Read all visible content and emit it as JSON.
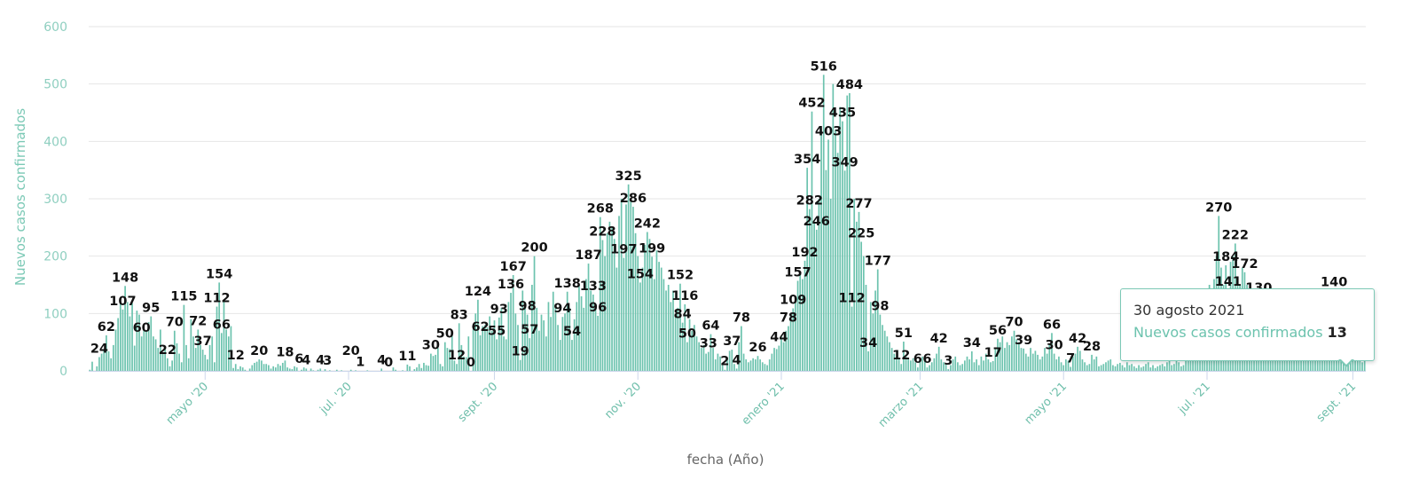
{
  "chart_data": {
    "type": "bar",
    "title": "",
    "xlabel": "fecha (Año)",
    "ylabel": "Nuevos casos confirmados",
    "ylim": [
      0,
      600
    ],
    "yticks": [
      "0",
      "100",
      "200",
      "300",
      "400",
      "500",
      "600"
    ],
    "xlim": [
      "2020-03-13",
      "2021-09-06"
    ],
    "xticks": [
      {
        "date": "2020-05-01",
        "label": "mayo '20"
      },
      {
        "date": "2020-07-01",
        "label": "jul. '20"
      },
      {
        "date": "2020-09-01",
        "label": "sept. '20"
      },
      {
        "date": "2020-11-01",
        "label": "nov. '20"
      },
      {
        "date": "2021-01-01",
        "label": "enero '21"
      },
      {
        "date": "2021-03-01",
        "label": "marzo '21"
      },
      {
        "date": "2021-05-01",
        "label": "mayo '21"
      },
      {
        "date": "2021-07-01",
        "label": "jul. '21"
      },
      {
        "date": "2021-09-01",
        "label": "sept. '21"
      }
    ],
    "grid": true,
    "bar_color": "#6cc3ae",
    "daily_values": [
      2,
      16,
      0,
      8,
      24,
      30,
      38,
      62,
      34,
      22,
      45,
      72,
      92,
      118,
      107,
      148,
      120,
      95,
      118,
      44,
      105,
      98,
      60,
      72,
      70,
      85,
      95,
      60,
      55,
      40,
      72,
      30,
      38,
      22,
      8,
      18,
      70,
      48,
      30,
      15,
      115,
      45,
      22,
      90,
      60,
      40,
      72,
      45,
      37,
      28,
      20,
      45,
      60,
      15,
      112,
      154,
      66,
      120,
      72,
      60,
      78,
      5,
      12,
      3,
      8,
      6,
      2,
      0,
      4,
      10,
      14,
      16,
      20,
      18,
      12,
      12,
      10,
      4,
      8,
      6,
      12,
      9,
      14,
      18,
      6,
      4,
      3,
      8,
      6,
      0,
      2,
      6,
      4,
      0,
      4,
      1,
      0,
      2,
      4,
      0,
      3,
      0,
      1,
      0,
      0,
      2,
      0,
      1,
      0,
      0,
      0,
      2,
      0,
      1,
      0,
      0,
      0,
      0,
      1,
      0,
      0,
      0,
      0,
      0,
      4,
      0,
      0,
      0,
      0,
      6,
      2,
      0,
      0,
      1,
      0,
      11,
      8,
      0,
      3,
      6,
      12,
      5,
      14,
      10,
      9,
      30,
      26,
      28,
      40,
      12,
      8,
      50,
      40,
      38,
      62,
      18,
      12,
      83,
      45,
      25,
      24,
      60,
      0,
      72,
      100,
      124,
      62,
      78,
      80,
      76,
      95,
      70,
      88,
      55,
      93,
      110,
      60,
      55,
      120,
      136,
      167,
      100,
      80,
      19,
      140,
      118,
      98,
      57,
      150,
      200,
      110,
      70,
      98,
      88,
      60,
      120,
      94,
      138,
      110,
      80,
      54,
      94,
      100,
      138,
      110,
      54,
      90,
      120,
      150,
      130,
      110,
      160,
      187,
      140,
      133,
      110,
      96,
      268,
      228,
      200,
      240,
      260,
      250,
      230,
      180,
      270,
      300,
      197,
      290,
      325,
      300,
      286,
      240,
      200,
      154,
      180,
      220,
      242,
      230,
      199,
      160,
      210,
      190,
      180,
      160,
      140,
      150,
      120,
      140,
      100,
      110,
      152,
      84,
      116,
      50,
      90,
      70,
      80,
      60,
      50,
      40,
      45,
      30,
      33,
      64,
      40,
      20,
      30,
      25,
      10,
      2,
      20,
      35,
      37,
      12,
      4,
      50,
      78,
      30,
      20,
      15,
      18,
      22,
      20,
      26,
      20,
      15,
      12,
      10,
      20,
      30,
      40,
      38,
      44,
      60,
      50,
      70,
      78,
      100,
      109,
      120,
      157,
      170,
      160,
      192,
      354,
      282,
      452,
      260,
      246,
      300,
      420,
      516,
      350,
      403,
      300,
      500,
      420,
      380,
      460,
      435,
      349,
      480,
      484,
      112,
      300,
      260,
      277,
      225,
      200,
      150,
      34,
      120,
      100,
      140,
      177,
      98,
      80,
      70,
      60,
      50,
      40,
      30,
      25,
      20,
      12,
      51,
      25,
      20,
      18,
      22,
      15,
      6,
      20,
      25,
      18,
      6,
      10,
      15,
      22,
      30,
      42,
      20,
      15,
      12,
      3,
      10,
      20,
      25,
      15,
      10,
      12,
      18,
      25,
      20,
      34,
      15,
      20,
      10,
      25,
      18,
      30,
      20,
      15,
      17,
      40,
      56,
      50,
      60,
      40,
      50,
      45,
      60,
      70,
      55,
      50,
      40,
      39,
      30,
      25,
      40,
      30,
      35,
      28,
      20,
      25,
      40,
      30,
      45,
      66,
      30,
      20,
      25,
      15,
      10,
      20,
      18,
      7,
      25,
      30,
      42,
      35,
      20,
      15,
      10,
      12,
      28,
      20,
      25,
      8,
      10,
      12,
      15,
      18,
      20,
      10,
      8,
      12,
      14,
      10,
      6,
      15,
      10,
      12,
      8,
      5,
      10,
      6,
      8,
      12,
      15,
      6,
      10,
      5,
      8,
      10,
      12,
      8,
      15,
      18,
      10,
      12,
      20,
      15,
      8,
      10,
      18,
      20,
      25,
      22,
      30,
      40,
      60,
      80,
      100,
      120,
      150,
      110,
      160,
      200,
      270,
      180,
      150,
      184,
      141,
      190,
      200,
      222,
      160,
      150,
      180,
      172,
      150,
      120,
      100,
      110,
      90,
      130,
      100,
      80,
      70,
      90,
      60,
      70,
      50,
      80,
      60,
      70,
      55,
      60,
      50,
      45,
      60,
      70,
      40,
      50,
      55,
      45,
      60,
      40,
      50,
      45,
      50,
      40,
      60,
      55,
      35,
      40,
      45,
      140,
      50,
      40,
      30,
      25,
      35,
      13,
      30,
      25,
      20,
      30,
      20,
      15,
      18
    ],
    "data_labels": [
      {
        "date": "2020-03-17",
        "value": 24
      },
      {
        "date": "2020-03-20",
        "value": 62
      },
      {
        "date": "2020-03-27",
        "value": 107
      },
      {
        "date": "2020-03-28",
        "value": 148
      },
      {
        "date": "2020-04-04",
        "value": 60
      },
      {
        "date": "2020-04-08",
        "value": 95
      },
      {
        "date": "2020-04-15",
        "value": 22
      },
      {
        "date": "2020-04-18",
        "value": 70
      },
      {
        "date": "2020-04-22",
        "value": 115
      },
      {
        "date": "2020-04-28",
        "value": 72
      },
      {
        "date": "2020-04-30",
        "value": 37
      },
      {
        "date": "2020-05-06",
        "value": 112
      },
      {
        "date": "2020-05-07",
        "value": 154
      },
      {
        "date": "2020-05-08",
        "value": 66
      },
      {
        "date": "2020-05-14",
        "value": 12
      },
      {
        "date": "2020-05-24",
        "value": 20
      },
      {
        "date": "2020-06-04",
        "value": 18
      },
      {
        "date": "2020-06-10",
        "value": 6
      },
      {
        "date": "2020-06-13",
        "value": 4
      },
      {
        "date": "2020-06-19",
        "value": 4
      },
      {
        "date": "2020-06-22",
        "value": 3
      },
      {
        "date": "2020-07-02",
        "value": 20
      },
      {
        "date": "2020-07-06",
        "value": 1
      },
      {
        "date": "2020-07-15",
        "value": 4
      },
      {
        "date": "2020-07-18",
        "value": 0
      },
      {
        "date": "2020-07-26",
        "value": 11
      },
      {
        "date": "2020-08-05",
        "value": 30
      },
      {
        "date": "2020-08-11",
        "value": 50
      },
      {
        "date": "2020-08-16",
        "value": 12
      },
      {
        "date": "2020-08-17",
        "value": 83
      },
      {
        "date": "2020-08-22",
        "value": 0
      },
      {
        "date": "2020-08-25",
        "value": 124
      },
      {
        "date": "2020-08-26",
        "value": 62
      },
      {
        "date": "2020-09-02",
        "value": 55
      },
      {
        "date": "2020-09-03",
        "value": 93
      },
      {
        "date": "2020-09-08",
        "value": 136
      },
      {
        "date": "2020-09-09",
        "value": 167
      },
      {
        "date": "2020-09-12",
        "value": 19
      },
      {
        "date": "2020-09-15",
        "value": 98
      },
      {
        "date": "2020-09-16",
        "value": 57
      },
      {
        "date": "2020-09-18",
        "value": 200
      },
      {
        "date": "2020-09-30",
        "value": 94
      },
      {
        "date": "2020-10-02",
        "value": 138
      },
      {
        "date": "2020-10-04",
        "value": 54
      },
      {
        "date": "2020-10-11",
        "value": 187
      },
      {
        "date": "2020-10-13",
        "value": 133
      },
      {
        "date": "2020-10-15",
        "value": 96
      },
      {
        "date": "2020-10-16",
        "value": 268
      },
      {
        "date": "2020-10-17",
        "value": 228
      },
      {
        "date": "2020-10-26",
        "value": 197
      },
      {
        "date": "2020-10-28",
        "value": 325
      },
      {
        "date": "2020-10-30",
        "value": 286
      },
      {
        "date": "2020-11-02",
        "value": 154
      },
      {
        "date": "2020-11-05",
        "value": 242
      },
      {
        "date": "2020-11-07",
        "value": 199
      },
      {
        "date": "2020-11-19",
        "value": 152
      },
      {
        "date": "2020-11-20",
        "value": 84
      },
      {
        "date": "2020-11-21",
        "value": 116
      },
      {
        "date": "2020-11-22",
        "value": 50
      },
      {
        "date": "2020-12-01",
        "value": 33
      },
      {
        "date": "2020-12-02",
        "value": 64
      },
      {
        "date": "2020-12-08",
        "value": 2
      },
      {
        "date": "2020-12-11",
        "value": 37
      },
      {
        "date": "2020-12-13",
        "value": 4
      },
      {
        "date": "2020-12-15",
        "value": 78
      },
      {
        "date": "2020-12-22",
        "value": 26
      },
      {
        "date": "2020-12-31",
        "value": 44
      },
      {
        "date": "2021-01-04",
        "value": 78
      },
      {
        "date": "2021-01-06",
        "value": 109
      },
      {
        "date": "2021-01-08",
        "value": 157
      },
      {
        "date": "2021-01-11",
        "value": 192
      },
      {
        "date": "2021-01-12",
        "value": 354
      },
      {
        "date": "2021-01-13",
        "value": 282
      },
      {
        "date": "2021-01-14",
        "value": 452
      },
      {
        "date": "2021-01-16",
        "value": 246
      },
      {
        "date": "2021-01-19",
        "value": 516
      },
      {
        "date": "2021-01-21",
        "value": 403
      },
      {
        "date": "2021-01-27",
        "value": 435
      },
      {
        "date": "2021-01-28",
        "value": 349
      },
      {
        "date": "2021-01-30",
        "value": 484
      },
      {
        "date": "2021-01-31",
        "value": 112
      },
      {
        "date": "2021-02-03",
        "value": 277
      },
      {
        "date": "2021-02-04",
        "value": 225
      },
      {
        "date": "2021-02-07",
        "value": 34
      },
      {
        "date": "2021-02-11",
        "value": 177
      },
      {
        "date": "2021-02-12",
        "value": 98
      },
      {
        "date": "2021-02-21",
        "value": 12
      },
      {
        "date": "2021-02-22",
        "value": 51
      },
      {
        "date": "2021-02-28",
        "value": 6
      },
      {
        "date": "2021-03-04",
        "value": 6
      },
      {
        "date": "2021-03-09",
        "value": 42
      },
      {
        "date": "2021-03-13",
        "value": 3
      },
      {
        "date": "2021-03-23",
        "value": 34
      },
      {
        "date": "2021-04-01",
        "value": 17
      },
      {
        "date": "2021-04-03",
        "value": 56
      },
      {
        "date": "2021-04-10",
        "value": 70
      },
      {
        "date": "2021-04-14",
        "value": 39
      },
      {
        "date": "2021-04-26",
        "value": 66
      },
      {
        "date": "2021-04-27",
        "value": 30
      },
      {
        "date": "2021-05-04",
        "value": 7
      },
      {
        "date": "2021-05-07",
        "value": 42
      },
      {
        "date": "2021-05-13",
        "value": 28
      },
      {
        "date": "2021-07-06",
        "value": 270
      },
      {
        "date": "2021-07-09",
        "value": 184
      },
      {
        "date": "2021-07-10",
        "value": 141
      },
      {
        "date": "2021-07-13",
        "value": 222
      },
      {
        "date": "2021-07-17",
        "value": 172
      },
      {
        "date": "2021-07-23",
        "value": 130
      },
      {
        "date": "2021-08-24",
        "value": 140
      }
    ]
  },
  "tooltip": {
    "date": "30 agosto 2021",
    "series": "Nuevos casos confirmados",
    "value": "13"
  }
}
